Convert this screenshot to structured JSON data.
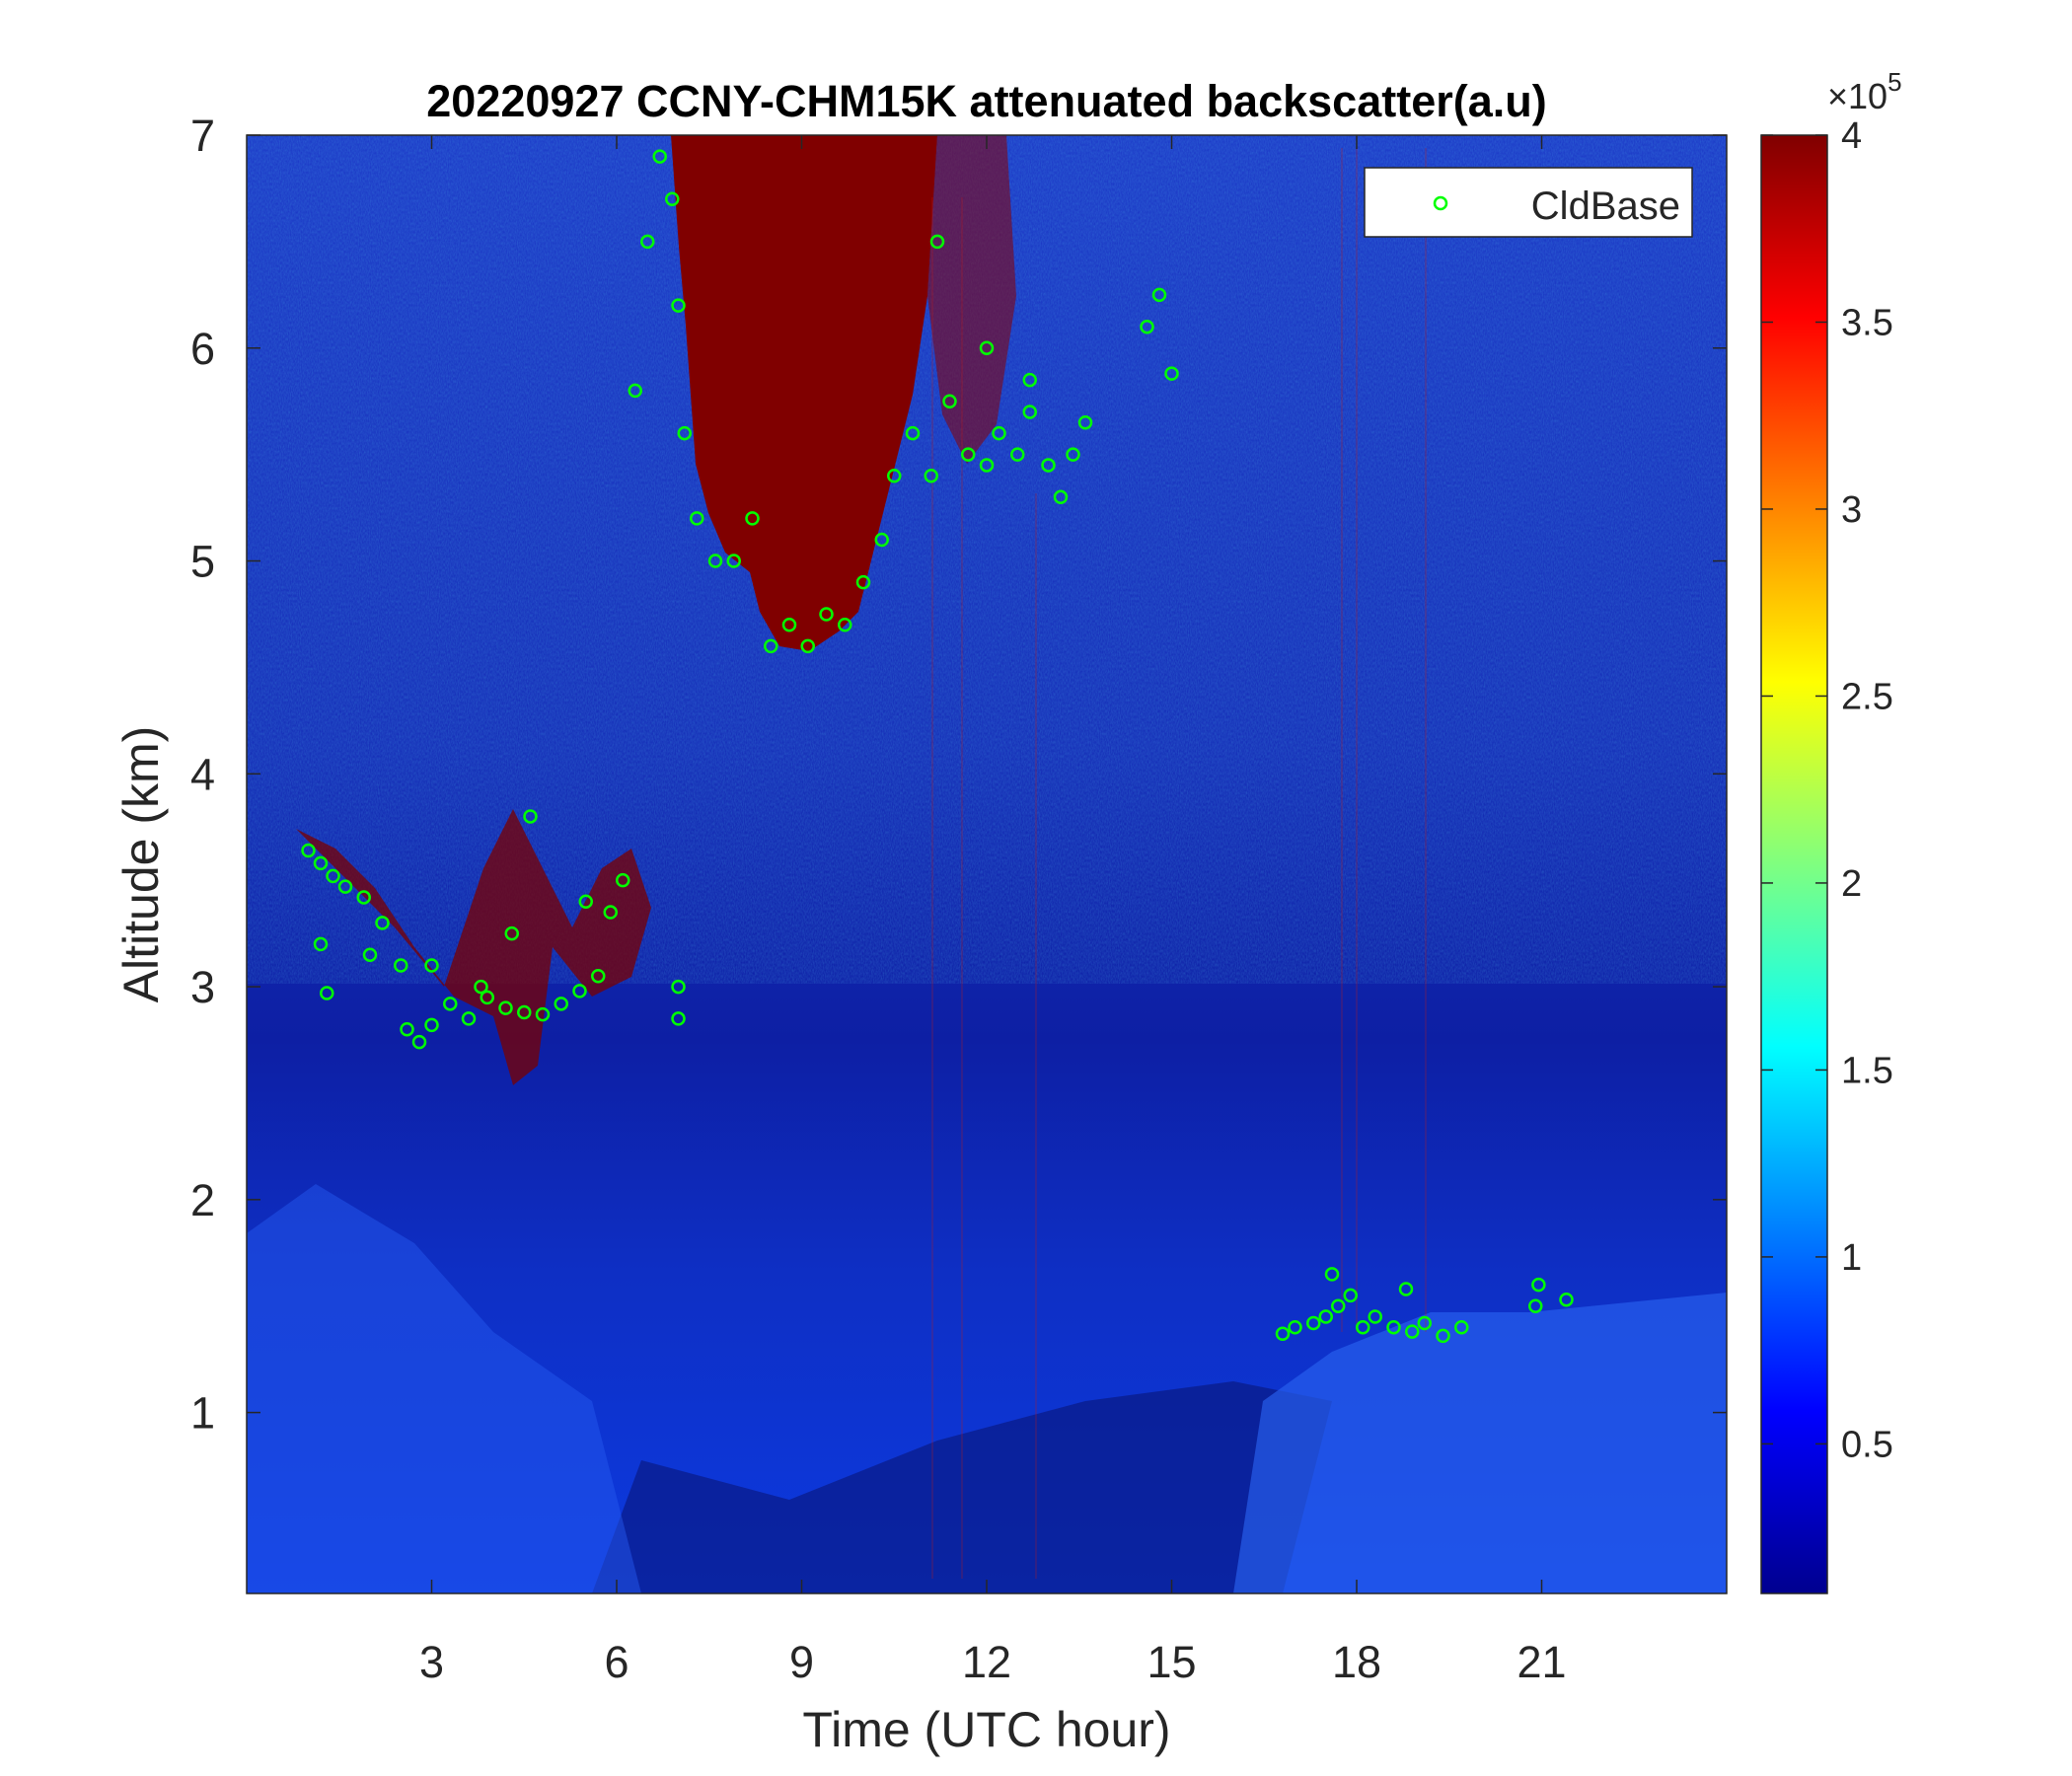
{
  "chart_data": {
    "type": "heatmap",
    "title": "20220927 CCNY-CHM15K attenuated backscatter(a.u)",
    "xlabel": "Time (UTC hour)",
    "ylabel": "Altitude (km)",
    "xlim": [
      0,
      24
    ],
    "ylim": [
      0.15,
      7
    ],
    "xticks": [
      3,
      6,
      9,
      12,
      15,
      18,
      21
    ],
    "yticks": [
      1,
      2,
      3,
      4,
      5,
      6,
      7
    ],
    "colorbar": {
      "colormap": "jet",
      "range": [
        0.1,
        4
      ],
      "ticks": [
        0.5,
        1,
        1.5,
        2,
        2.5,
        3,
        3.5,
        4
      ],
      "multiplier": "×10",
      "exponent": "5"
    },
    "legend": {
      "position": "top-right",
      "entries": [
        "CldBase"
      ]
    },
    "series": [
      {
        "name": "CldBase",
        "marker": "circle",
        "color": "#00ff00",
        "points": [
          [
            1.0,
            3.64
          ],
          [
            1.2,
            3.58
          ],
          [
            1.4,
            3.52
          ],
          [
            1.6,
            3.47
          ],
          [
            1.9,
            3.42
          ],
          [
            2.2,
            3.3
          ],
          [
            2.5,
            3.1
          ],
          [
            2.6,
            2.8
          ],
          [
            2.8,
            2.74
          ],
          [
            3.0,
            2.82
          ],
          [
            3.3,
            2.92
          ],
          [
            3.6,
            2.85
          ],
          [
            3.9,
            2.95
          ],
          [
            4.2,
            2.9
          ],
          [
            4.5,
            2.88
          ],
          [
            4.8,
            2.87
          ],
          [
            5.1,
            2.92
          ],
          [
            5.4,
            2.98
          ],
          [
            5.7,
            3.05
          ],
          [
            5.9,
            3.35
          ],
          [
            6.1,
            3.5
          ],
          [
            1.2,
            3.2
          ],
          [
            1.3,
            2.97
          ],
          [
            2.0,
            3.15
          ],
          [
            3.0,
            3.1
          ],
          [
            3.8,
            3.0
          ],
          [
            4.3,
            3.25
          ],
          [
            4.6,
            3.8
          ],
          [
            5.5,
            3.4
          ],
          [
            7.0,
            3.0
          ],
          [
            7.0,
            2.85
          ],
          [
            6.3,
            5.8
          ],
          [
            6.5,
            6.5
          ],
          [
            6.7,
            6.9
          ],
          [
            6.9,
            6.7
          ],
          [
            7.0,
            6.2
          ],
          [
            7.1,
            5.6
          ],
          [
            7.3,
            5.2
          ],
          [
            7.6,
            5.0
          ],
          [
            7.9,
            5.0
          ],
          [
            8.2,
            5.2
          ],
          [
            8.5,
            4.6
          ],
          [
            8.8,
            4.7
          ],
          [
            9.1,
            4.6
          ],
          [
            9.4,
            4.75
          ],
          [
            9.7,
            4.7
          ],
          [
            10.0,
            4.9
          ],
          [
            10.3,
            5.1
          ],
          [
            10.5,
            5.4
          ],
          [
            10.8,
            5.6
          ],
          [
            11.1,
            5.4
          ],
          [
            11.2,
            6.5
          ],
          [
            11.4,
            5.75
          ],
          [
            11.7,
            5.5
          ],
          [
            12.0,
            5.45
          ],
          [
            12.2,
            5.6
          ],
          [
            12.5,
            5.5
          ],
          [
            12.7,
            5.7
          ],
          [
            13.0,
            5.45
          ],
          [
            13.2,
            5.3
          ],
          [
            13.4,
            5.5
          ],
          [
            13.6,
            5.65
          ],
          [
            12.0,
            6.0
          ],
          [
            12.7,
            5.85
          ],
          [
            14.6,
            6.1
          ],
          [
            14.8,
            6.25
          ],
          [
            15.0,
            5.88
          ],
          [
            16.8,
            1.37
          ],
          [
            17.0,
            1.4
          ],
          [
            17.3,
            1.42
          ],
          [
            17.5,
            1.45
          ],
          [
            17.7,
            1.5
          ],
          [
            17.9,
            1.55
          ],
          [
            18.1,
            1.4
          ],
          [
            18.3,
            1.45
          ],
          [
            18.6,
            1.4
          ],
          [
            18.9,
            1.38
          ],
          [
            19.1,
            1.42
          ],
          [
            19.4,
            1.36
          ],
          [
            19.7,
            1.4
          ],
          [
            17.6,
            1.65
          ],
          [
            18.8,
            1.58
          ],
          [
            20.9,
            1.5
          ],
          [
            20.95,
            1.6
          ],
          [
            21.4,
            1.53
          ]
        ]
      }
    ]
  }
}
